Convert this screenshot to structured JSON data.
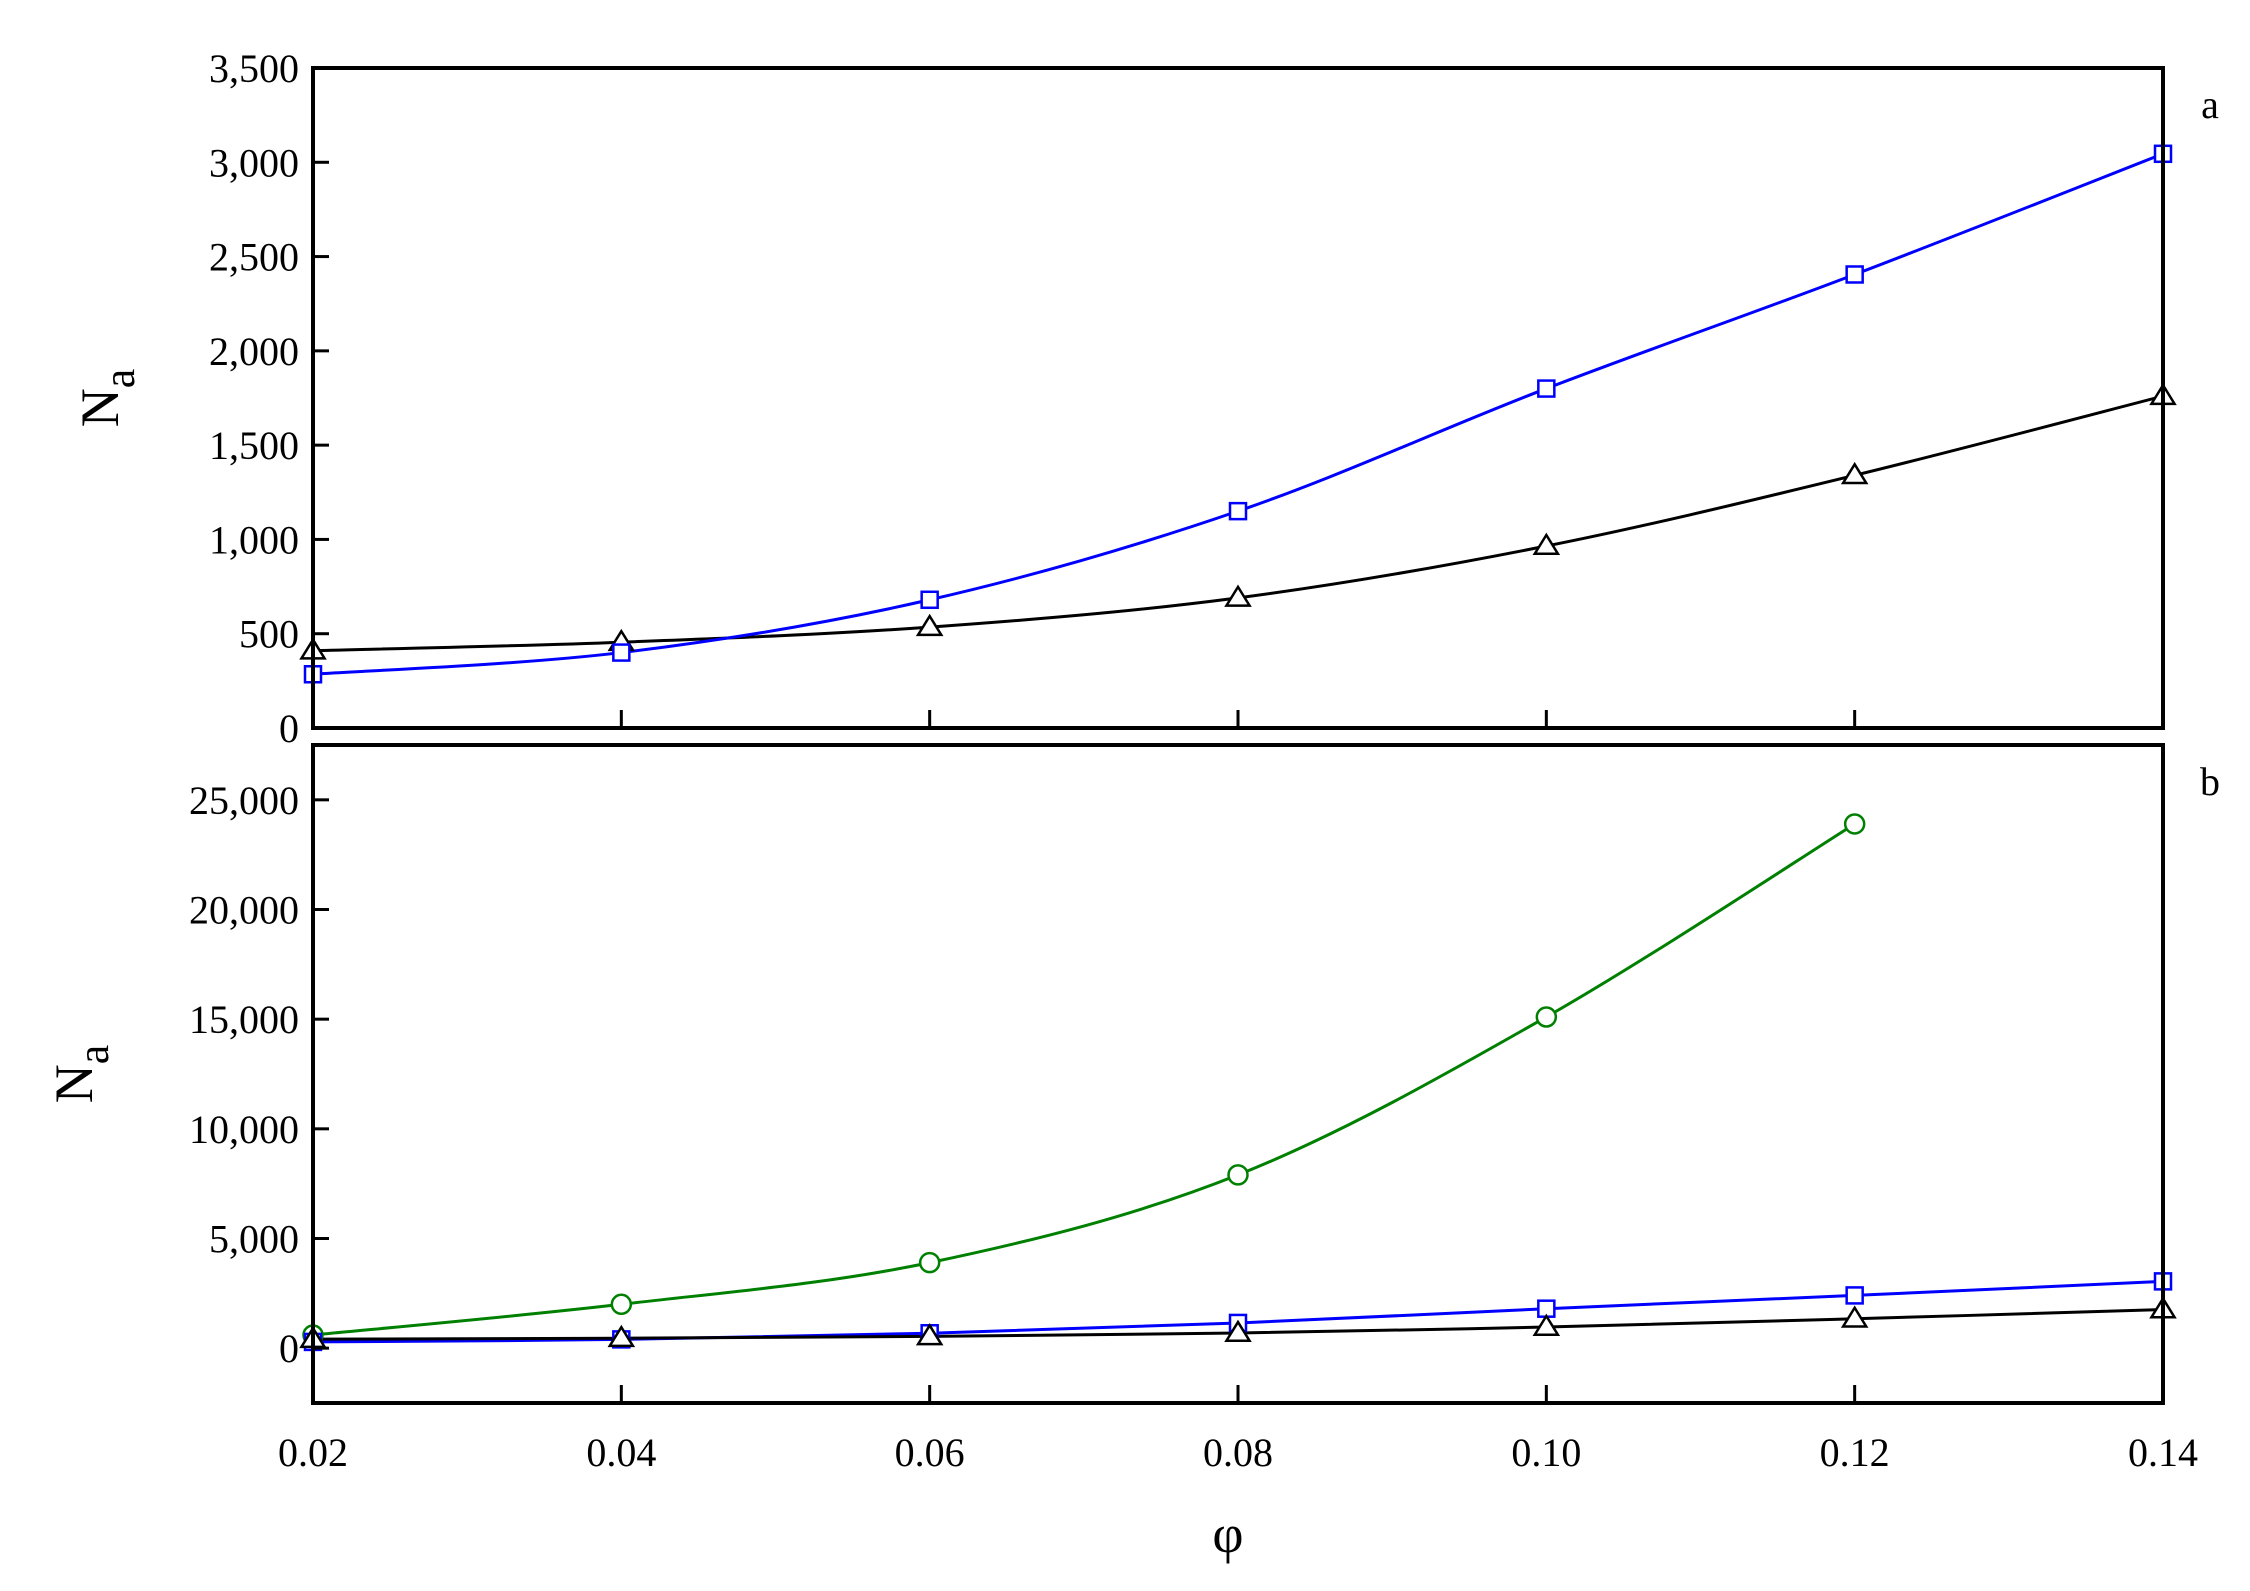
{
  "figure": {
    "x_label": "φ",
    "x_ticks": [
      "0.02",
      "0.04",
      "0.06",
      "0.08",
      "0.10",
      "0.12",
      "0.14"
    ]
  },
  "chart_data": [
    {
      "type": "line",
      "panel": "a",
      "ylabel": "N",
      "ylabel_sub": "a",
      "xlabel": "φ",
      "xlim": [
        0.02,
        0.14
      ],
      "ylim": [
        0,
        3500
      ],
      "y_ticks": [
        {
          "value": 0,
          "label": "0"
        },
        {
          "value": 500,
          "label": "500"
        },
        {
          "value": 1000,
          "label": "1,000"
        },
        {
          "value": 1500,
          "label": "1,500"
        },
        {
          "value": 2000,
          "label": "2,000"
        },
        {
          "value": 2500,
          "label": "2,500"
        },
        {
          "value": 3000,
          "label": "3,000"
        },
        {
          "value": 3500,
          "label": "3,500"
        }
      ],
      "grid": false,
      "series": [
        {
          "marker": "triangle",
          "color": "#000000",
          "points": [
            [
              0.02,
              410
            ],
            [
              0.04,
              455
            ],
            [
              0.06,
              535
            ],
            [
              0.08,
              690
            ],
            [
              0.1,
              965
            ],
            [
              0.12,
              1340
            ],
            [
              0.14,
              1760
            ]
          ]
        },
        {
          "marker": "square",
          "color": "#0000ff",
          "points": [
            [
              0.02,
              285
            ],
            [
              0.04,
              400
            ],
            [
              0.06,
              680
            ],
            [
              0.08,
              1150
            ],
            [
              0.1,
              1800
            ],
            [
              0.12,
              2405
            ],
            [
              0.14,
              3045
            ]
          ]
        }
      ]
    },
    {
      "type": "line",
      "panel": "b",
      "ylabel": "N",
      "ylabel_sub": "a",
      "xlabel": "φ",
      "xlim": [
        0.02,
        0.14
      ],
      "ylim": [
        -2500,
        27500
      ],
      "y_ticks": [
        {
          "value": 0,
          "label": "0"
        },
        {
          "value": 5000,
          "label": "5,000"
        },
        {
          "value": 10000,
          "label": "10,000"
        },
        {
          "value": 15000,
          "label": "15,000"
        },
        {
          "value": 20000,
          "label": "20,000"
        },
        {
          "value": 25000,
          "label": "25,000"
        }
      ],
      "grid": false,
      "series": [
        {
          "marker": "circle",
          "color": "#008000",
          "points": [
            [
              0.02,
              600
            ],
            [
              0.04,
              2000
            ],
            [
              0.06,
              3900
            ],
            [
              0.08,
              7900
            ],
            [
              0.1,
              15100
            ],
            [
              0.12,
              23900
            ]
          ]
        },
        {
          "marker": "square",
          "color": "#0000ff",
          "points": [
            [
              0.02,
              285
            ],
            [
              0.04,
              400
            ],
            [
              0.06,
              680
            ],
            [
              0.08,
              1150
            ],
            [
              0.1,
              1800
            ],
            [
              0.12,
              2405
            ],
            [
              0.14,
              3045
            ]
          ]
        },
        {
          "marker": "triangle",
          "color": "#000000",
          "points": [
            [
              0.02,
              410
            ],
            [
              0.04,
              455
            ],
            [
              0.06,
              535
            ],
            [
              0.08,
              690
            ],
            [
              0.1,
              965
            ],
            [
              0.12,
              1340
            ],
            [
              0.14,
              1760
            ]
          ]
        }
      ]
    }
  ]
}
